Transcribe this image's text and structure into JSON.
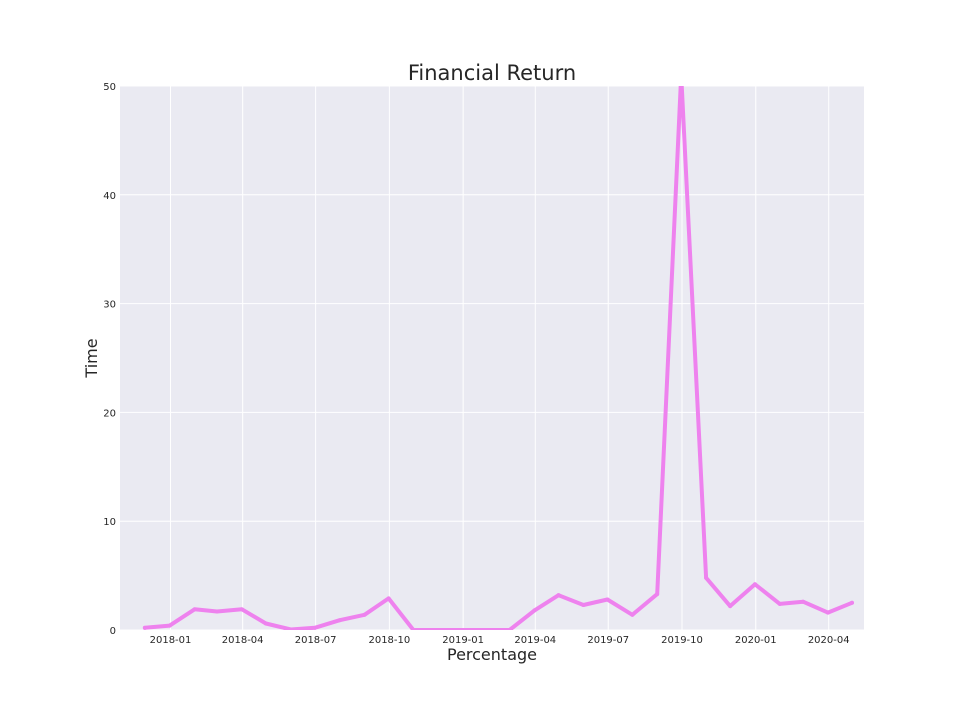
{
  "chart_data": {
    "type": "line",
    "title": "Financial Return",
    "xlabel": "Percentage",
    "ylabel": "Time",
    "ylim": [
      0,
      50
    ],
    "xlim": [
      "2017-10-30",
      "2020-05-15"
    ],
    "grid": true,
    "x_tick_labels": [
      "2018-01",
      "2018-04",
      "2018-07",
      "2018-10",
      "2019-01",
      "2019-04",
      "2019-07",
      "2019-10",
      "2020-01",
      "2020-04"
    ],
    "y_tick_labels": [
      "0",
      "10",
      "20",
      "30",
      "40",
      "50"
    ],
    "series": [
      {
        "color": "#ee82ee",
        "points": [
          {
            "x": "2017-11-30",
            "y": 0.2
          },
          {
            "x": "2017-12-31",
            "y": 0.4
          },
          {
            "x": "2018-01-31",
            "y": 1.9
          },
          {
            "x": "2018-02-28",
            "y": 1.7
          },
          {
            "x": "2018-03-31",
            "y": 1.9
          },
          {
            "x": "2018-04-30",
            "y": 0.6
          },
          {
            "x": "2018-05-31",
            "y": 0.05
          },
          {
            "x": "2018-06-30",
            "y": 0.2
          },
          {
            "x": "2018-07-31",
            "y": 0.9
          },
          {
            "x": "2018-08-31",
            "y": 1.4
          },
          {
            "x": "2018-09-30",
            "y": 2.9
          },
          {
            "x": "2018-10-31",
            "y": 0.0
          },
          {
            "x": "2018-11-30",
            "y": 0.0
          },
          {
            "x": "2018-12-31",
            "y": 0.0
          },
          {
            "x": "2019-01-31",
            "y": 0.0
          },
          {
            "x": "2019-02-28",
            "y": 0.0
          },
          {
            "x": "2019-03-31",
            "y": 1.8
          },
          {
            "x": "2019-04-30",
            "y": 3.2
          },
          {
            "x": "2019-05-31",
            "y": 2.3
          },
          {
            "x": "2019-06-30",
            "y": 2.8
          },
          {
            "x": "2019-07-31",
            "y": 1.4
          },
          {
            "x": "2019-08-31",
            "y": 3.3
          },
          {
            "x": "2019-09-30",
            "y": 51.0
          },
          {
            "x": "2019-10-31",
            "y": 4.8
          },
          {
            "x": "2019-11-30",
            "y": 2.2
          },
          {
            "x": "2019-12-31",
            "y": 4.2
          },
          {
            "x": "2020-01-31",
            "y": 2.4
          },
          {
            "x": "2020-02-29",
            "y": 2.6
          },
          {
            "x": "2020-03-31",
            "y": 1.6
          },
          {
            "x": "2020-04-30",
            "y": 2.5
          }
        ]
      }
    ]
  }
}
